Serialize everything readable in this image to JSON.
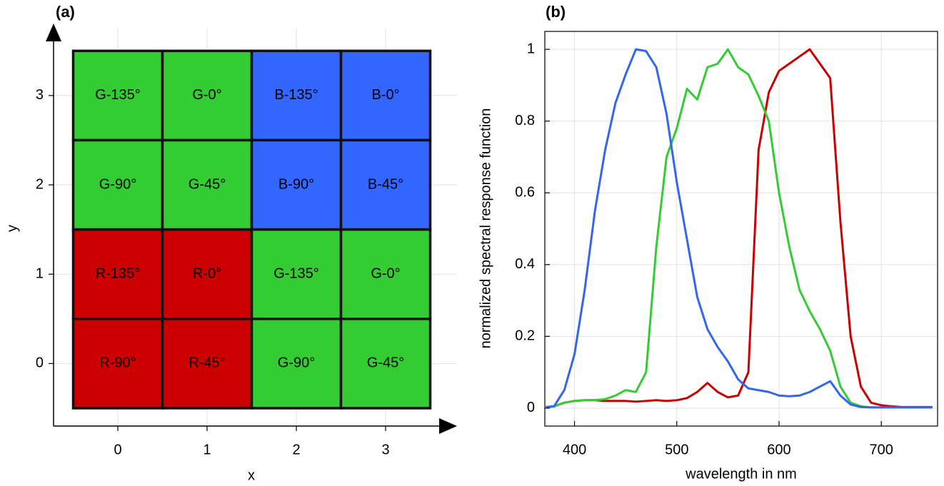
{
  "chart_data": [
    {
      "type": "grid",
      "title": "(a)",
      "xlabel": "x",
      "ylabel": "y",
      "xlim": [
        -0.72,
        3.8
      ],
      "ylim": [
        -0.7,
        3.75
      ],
      "xticks": [
        0,
        1,
        2,
        3
      ],
      "yticks": [
        0,
        1,
        2,
        3
      ],
      "grid": true,
      "cells": [
        {
          "x": 0,
          "y": 3,
          "label": "G-135°",
          "color": "#33cc33"
        },
        {
          "x": 1,
          "y": 3,
          "label": "G-0°",
          "color": "#33cc33"
        },
        {
          "x": 2,
          "y": 3,
          "label": "B-135°",
          "color": "#3366ff"
        },
        {
          "x": 3,
          "y": 3,
          "label": "B-0°",
          "color": "#3366ff"
        },
        {
          "x": 0,
          "y": 2,
          "label": "G-90°",
          "color": "#33cc33"
        },
        {
          "x": 1,
          "y": 2,
          "label": "G-45°",
          "color": "#33cc33"
        },
        {
          "x": 2,
          "y": 2,
          "label": "B-90°",
          "color": "#3366ff"
        },
        {
          "x": 3,
          "y": 2,
          "label": "B-45°",
          "color": "#3366ff"
        },
        {
          "x": 0,
          "y": 1,
          "label": "R-135°",
          "color": "#cc0000"
        },
        {
          "x": 1,
          "y": 1,
          "label": "R-0°",
          "color": "#cc0000"
        },
        {
          "x": 2,
          "y": 1,
          "label": "G-135°",
          "color": "#33cc33"
        },
        {
          "x": 3,
          "y": 1,
          "label": "G-0°",
          "color": "#33cc33"
        },
        {
          "x": 0,
          "y": 0,
          "label": "R-90°",
          "color": "#cc0000"
        },
        {
          "x": 1,
          "y": 0,
          "label": "R-45°",
          "color": "#cc0000"
        },
        {
          "x": 2,
          "y": 0,
          "label": "G-90°",
          "color": "#33cc33"
        },
        {
          "x": 3,
          "y": 0,
          "label": "G-45°",
          "color": "#33cc33"
        }
      ]
    },
    {
      "type": "line",
      "title": "(b)",
      "xlabel": "wavelength in nm",
      "ylabel": "normalized spectral response function",
      "xlim": [
        371,
        755
      ],
      "ylim": [
        -0.05,
        1.05
      ],
      "xticks": [
        400,
        500,
        600,
        700
      ],
      "yticks": [
        0,
        0.2,
        0.4,
        0.6,
        0.8,
        1
      ],
      "grid": true,
      "x": [
        372,
        380,
        390,
        400,
        410,
        420,
        430,
        440,
        450,
        460,
        470,
        480,
        490,
        500,
        510,
        520,
        530,
        540,
        550,
        560,
        570,
        580,
        590,
        600,
        610,
        620,
        630,
        640,
        650,
        660,
        670,
        680,
        690,
        700,
        710,
        720,
        730,
        740,
        750
      ],
      "series": [
        {
          "color": "#cc0000",
          "values": [
            0.003,
            0.005,
            0.015,
            0.02,
            0.022,
            0.022,
            0.02,
            0.02,
            0.02,
            0.018,
            0.02,
            0.022,
            0.02,
            0.022,
            0.028,
            0.045,
            0.07,
            0.045,
            0.03,
            0.035,
            0.1,
            0.72,
            0.88,
            0.94,
            0.96,
            0.98,
            1.0,
            0.96,
            0.92,
            0.52,
            0.2,
            0.06,
            0.015,
            0.008,
            0.005,
            0.003,
            0.003,
            0.003,
            0.003
          ]
        },
        {
          "color": "#33cc33",
          "values": [
            0.003,
            0.005,
            0.015,
            0.02,
            0.022,
            0.022,
            0.025,
            0.035,
            0.05,
            0.045,
            0.1,
            0.45,
            0.7,
            0.78,
            0.89,
            0.86,
            0.95,
            0.96,
            1.0,
            0.95,
            0.93,
            0.87,
            0.8,
            0.6,
            0.45,
            0.33,
            0.27,
            0.22,
            0.16,
            0.06,
            0.015,
            0.005,
            0.002,
            0.002,
            0.002,
            0.002,
            0.002,
            0.002,
            0.002
          ]
        },
        {
          "color": "#3366ee",
          "values": [
            0.003,
            0.005,
            0.05,
            0.15,
            0.33,
            0.55,
            0.72,
            0.85,
            0.93,
            1.0,
            0.995,
            0.95,
            0.82,
            0.63,
            0.47,
            0.31,
            0.22,
            0.17,
            0.13,
            0.08,
            0.055,
            0.05,
            0.045,
            0.035,
            0.033,
            0.035,
            0.045,
            0.06,
            0.075,
            0.035,
            0.01,
            0.003,
            0.002,
            0.002,
            0.002,
            0.002,
            0.002,
            0.002,
            0.002
          ]
        }
      ]
    }
  ]
}
